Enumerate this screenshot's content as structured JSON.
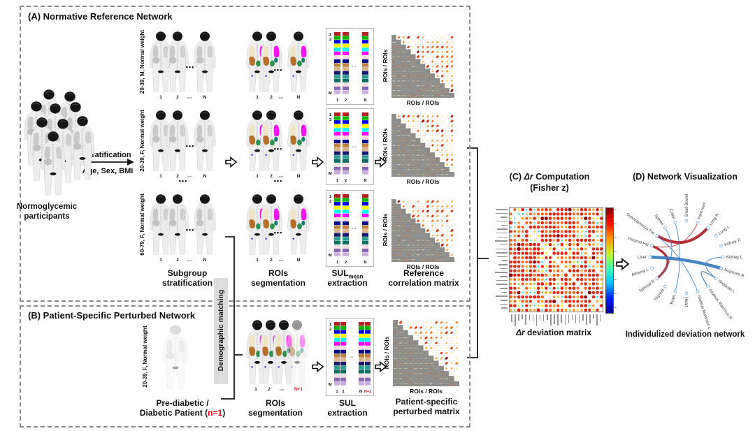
{
  "panel_a": {
    "title": "(A) Normative Reference Network",
    "crowd_label_1": "Normoglycemic",
    "crowd_label_2": "participants",
    "strat_top": "Stratification",
    "strat_bottom": "Age, Sex, BMI",
    "rows": [
      "20-39, M, Normal weight",
      "20-39, F, Normal weight",
      "60-79, F, Normal weight"
    ],
    "body_indices": [
      "1",
      "2",
      "⋯",
      "N"
    ],
    "ellipsis": "•••",
    "sul_top_rows": [
      "1",
      "2"
    ],
    "sul_row_m": "M",
    "sul_indices": [
      "1",
      "2",
      "N"
    ],
    "axis_label": "ROIs / ROIs",
    "cap_subgroup_1": "Subgroup",
    "cap_subgroup_2": "stratification",
    "cap_rois_1": "ROIs",
    "cap_rois_2": "segmentation",
    "cap_sul_main": "SUL",
    "cap_sul_sub": "mean",
    "cap_sul_2": "extraction",
    "cap_matrix_1": "Reference",
    "cap_matrix_2": "correlation matrix"
  },
  "panel_b": {
    "title": "(B) Patient-Specific Perturbed Network",
    "patient_side_label": "20-39, F, Normal weight",
    "patient_cap_1": "Pre-diabetic /",
    "patient_cap_2a": "Diabetic Patient (",
    "patient_cap_n": "n=1",
    "patient_cap_2b": ")",
    "demographic_label": "Demographic matching",
    "body_indices": [
      "1",
      "2",
      "⋯"
    ],
    "body_index_extra": "N+1",
    "sul_top_rows": [
      "1",
      "2"
    ],
    "sul_row_m": "M",
    "sul_indices": [
      "1",
      "2",
      "N"
    ],
    "sul_index_extra": "N+1",
    "axis_label": "ROIs / ROIs",
    "cap_rois_1": "ROIs",
    "cap_rois_2": "segmentation",
    "cap_sul_1": "SUL",
    "cap_sul_2": "extraction",
    "cap_matrix_1": "Patient-specific",
    "cap_matrix_2": "perturbed matrix"
  },
  "panel_c": {
    "title_pre": "(C) ",
    "title_it": "Δr",
    "title_post": " Computation",
    "title_line2": "(Fisher z)",
    "caption_it": "Δr",
    "caption_post": " deviation matrix"
  },
  "panel_d": {
    "title": "(D) Network Visualization",
    "caption": "Individulized deviation network",
    "nodes": [
      "Small Bowel",
      "Pancreas",
      "Lung R",
      "Lung L",
      "Kidney R",
      "Kidney L",
      "Iliopsoas R",
      "Iliopsoas L",
      "Gluteus Maximus R",
      "Gluteus Maximus L",
      "Heart",
      "Brain",
      "Thyroid",
      "Adrenal R",
      "Adrenal L",
      "Liver",
      "Visceral Fat",
      "Subcutaneous Fat",
      "Spleen",
      "Colon"
    ],
    "edges": [
      {
        "a": "Subcutaneous Fat",
        "b": "Lung R",
        "color": "red",
        "w": 4
      },
      {
        "a": "Visceral Fat",
        "b": "Adrenal R",
        "color": "red",
        "w": 3.4
      },
      {
        "a": "Visceral Fat",
        "b": "Pancreas",
        "color": "red",
        "w": 0.9
      },
      {
        "a": "Liver",
        "b": "Iliopsoas R",
        "color": "blue",
        "w": 4.6
      },
      {
        "a": "Colon",
        "b": "Brain",
        "color": "blue",
        "w": 0.9
      },
      {
        "a": "Spleen",
        "b": "Adrenal R",
        "color": "blue",
        "w": 0.9
      },
      {
        "a": "Subcutaneous Fat",
        "b": "Gluteus Maximus L",
        "color": "blue",
        "w": 0.9
      },
      {
        "a": "Kidney L",
        "b": "Iliopsoas L",
        "color": "blue",
        "w": 0.9
      },
      {
        "a": "Iliopsoas L",
        "b": "Gluteus Maximus R",
        "color": "blue",
        "w": 1.3
      }
    ]
  },
  "colors": {
    "accent_red": "#e8000d",
    "network_red": "#b01f24",
    "network_blue": "#3a7bbf",
    "sul_segments": [
      "#b22222",
      "#00b400",
      "#0000e0",
      "#ffff00",
      "#00ffff",
      "#ff00ff",
      "#f3dede",
      "#000d8a",
      "#bf8040",
      "#d9b38c",
      "#191970",
      "#2e9e8e",
      "#0f6e60",
      "#f5e0e0",
      "#8968b8",
      "#cbaede"
    ],
    "jet_scale": [
      "#00008f",
      "#0020ff",
      "#00c0ff",
      "#40ffb0",
      "#c8f020",
      "#ff9000",
      "#ff1000",
      "#800000"
    ]
  }
}
